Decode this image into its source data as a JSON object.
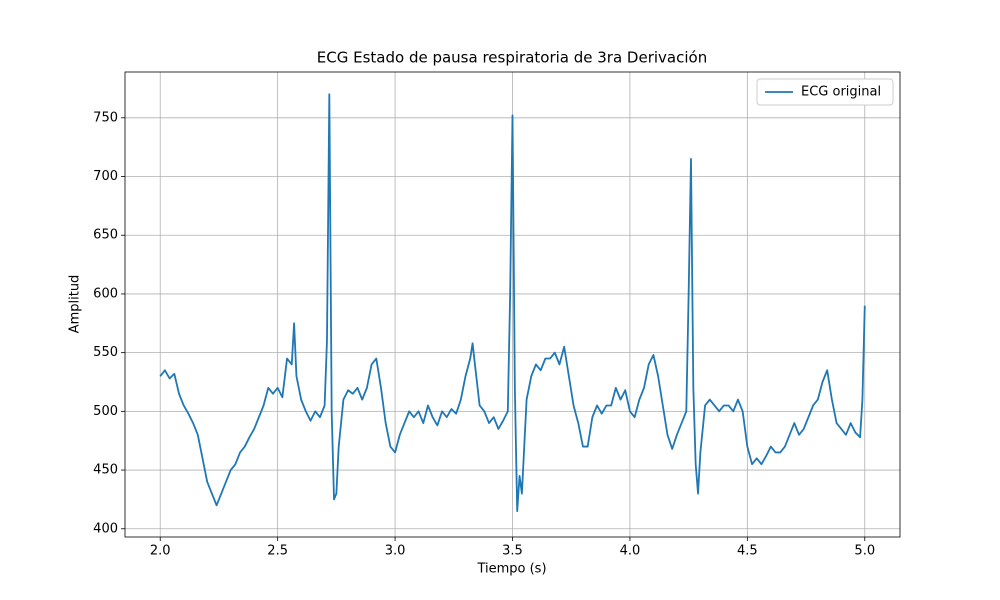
{
  "chart_data": {
    "type": "line",
    "title": "ECG Estado de pausa respiratoria de 3ra Derivación",
    "x_label": "Tiempo (s)",
    "y_label": "Amplitud",
    "xlim": [
      1.85,
      5.15
    ],
    "ylim": [
      393,
      789
    ],
    "xticks": [
      {
        "value": 2,
        "label": "2.0"
      },
      2.5,
      {
        "value": 3,
        "label": "3.0"
      },
      3.5,
      {
        "value": 4,
        "label": "4.0"
      },
      4.5,
      {
        "value": 5,
        "label": "5.0"
      }
    ],
    "yticks": [
      400,
      450,
      500,
      550,
      600,
      650,
      700,
      750
    ],
    "grid": true,
    "legend": "upper right",
    "x": [
      2.0,
      2.02,
      2.04,
      2.06,
      2.08,
      2.1,
      2.12,
      2.14,
      2.16,
      2.18,
      2.2,
      2.22,
      2.24,
      2.26,
      2.28,
      2.3,
      2.32,
      2.34,
      2.36,
      2.38,
      2.4,
      2.42,
      2.44,
      2.46,
      2.48,
      2.5,
      2.52,
      2.54,
      2.56,
      2.57,
      2.58,
      2.6,
      2.62,
      2.64,
      2.66,
      2.68,
      2.7,
      2.71,
      2.72,
      2.73,
      2.74,
      2.75,
      2.76,
      2.78,
      2.8,
      2.82,
      2.84,
      2.86,
      2.88,
      2.9,
      2.92,
      2.94,
      2.96,
      2.98,
      3.0,
      3.02,
      3.04,
      3.06,
      3.08,
      3.1,
      3.12,
      3.14,
      3.16,
      3.18,
      3.2,
      3.22,
      3.24,
      3.26,
      3.28,
      3.3,
      3.32,
      3.33,
      3.34,
      3.36,
      3.38,
      3.4,
      3.42,
      3.44,
      3.46,
      3.48,
      3.49,
      3.5,
      3.51,
      3.52,
      3.53,
      3.54,
      3.56,
      3.58,
      3.6,
      3.62,
      3.64,
      3.66,
      3.68,
      3.7,
      3.72,
      3.74,
      3.76,
      3.78,
      3.8,
      3.82,
      3.84,
      3.86,
      3.88,
      3.9,
      3.92,
      3.94,
      3.96,
      3.98,
      4.0,
      4.02,
      4.04,
      4.06,
      4.08,
      4.1,
      4.12,
      4.14,
      4.16,
      4.18,
      4.2,
      4.22,
      4.24,
      4.25,
      4.26,
      4.27,
      4.28,
      4.29,
      4.3,
      4.32,
      4.34,
      4.36,
      4.38,
      4.4,
      4.42,
      4.44,
      4.46,
      4.48,
      4.5,
      4.52,
      4.54,
      4.56,
      4.58,
      4.6,
      4.62,
      4.64,
      4.66,
      4.68,
      4.7,
      4.72,
      4.74,
      4.76,
      4.78,
      4.8,
      4.82,
      4.84,
      4.86,
      4.88,
      4.9,
      4.92,
      4.94,
      4.96,
      4.98,
      4.99,
      5.0
    ],
    "series": [
      {
        "name": "ECG original",
        "color": "#1f77b4",
        "values": [
          530,
          535,
          528,
          532,
          515,
          505,
          498,
          490,
          480,
          460,
          440,
          430,
          420,
          430,
          440,
          450,
          455,
          465,
          470,
          478,
          485,
          495,
          505,
          520,
          515,
          520,
          512,
          545,
          540,
          575,
          530,
          510,
          500,
          492,
          500,
          495,
          505,
          560,
          770,
          500,
          425,
          430,
          470,
          510,
          518,
          515,
          520,
          510,
          520,
          540,
          545,
          520,
          490,
          470,
          465,
          480,
          490,
          500,
          495,
          500,
          490,
          505,
          495,
          488,
          500,
          495,
          502,
          498,
          510,
          530,
          545,
          558,
          540,
          505,
          500,
          490,
          495,
          485,
          492,
          500,
          600,
          752,
          520,
          415,
          445,
          430,
          510,
          530,
          540,
          535,
          545,
          545,
          550,
          540,
          555,
          530,
          505,
          490,
          470,
          470,
          495,
          505,
          498,
          505,
          505,
          520,
          510,
          518,
          500,
          495,
          510,
          520,
          540,
          548,
          530,
          505,
          480,
          468,
          480,
          490,
          500,
          600,
          715,
          520,
          455,
          430,
          465,
          505,
          510,
          505,
          500,
          505,
          505,
          500,
          510,
          500,
          470,
          455,
          460,
          455,
          462,
          470,
          465,
          465,
          470,
          480,
          490,
          480,
          485,
          495,
          505,
          510,
          525,
          535,
          510,
          490,
          485,
          480,
          490,
          482,
          478,
          510,
          590
        ]
      }
    ]
  }
}
